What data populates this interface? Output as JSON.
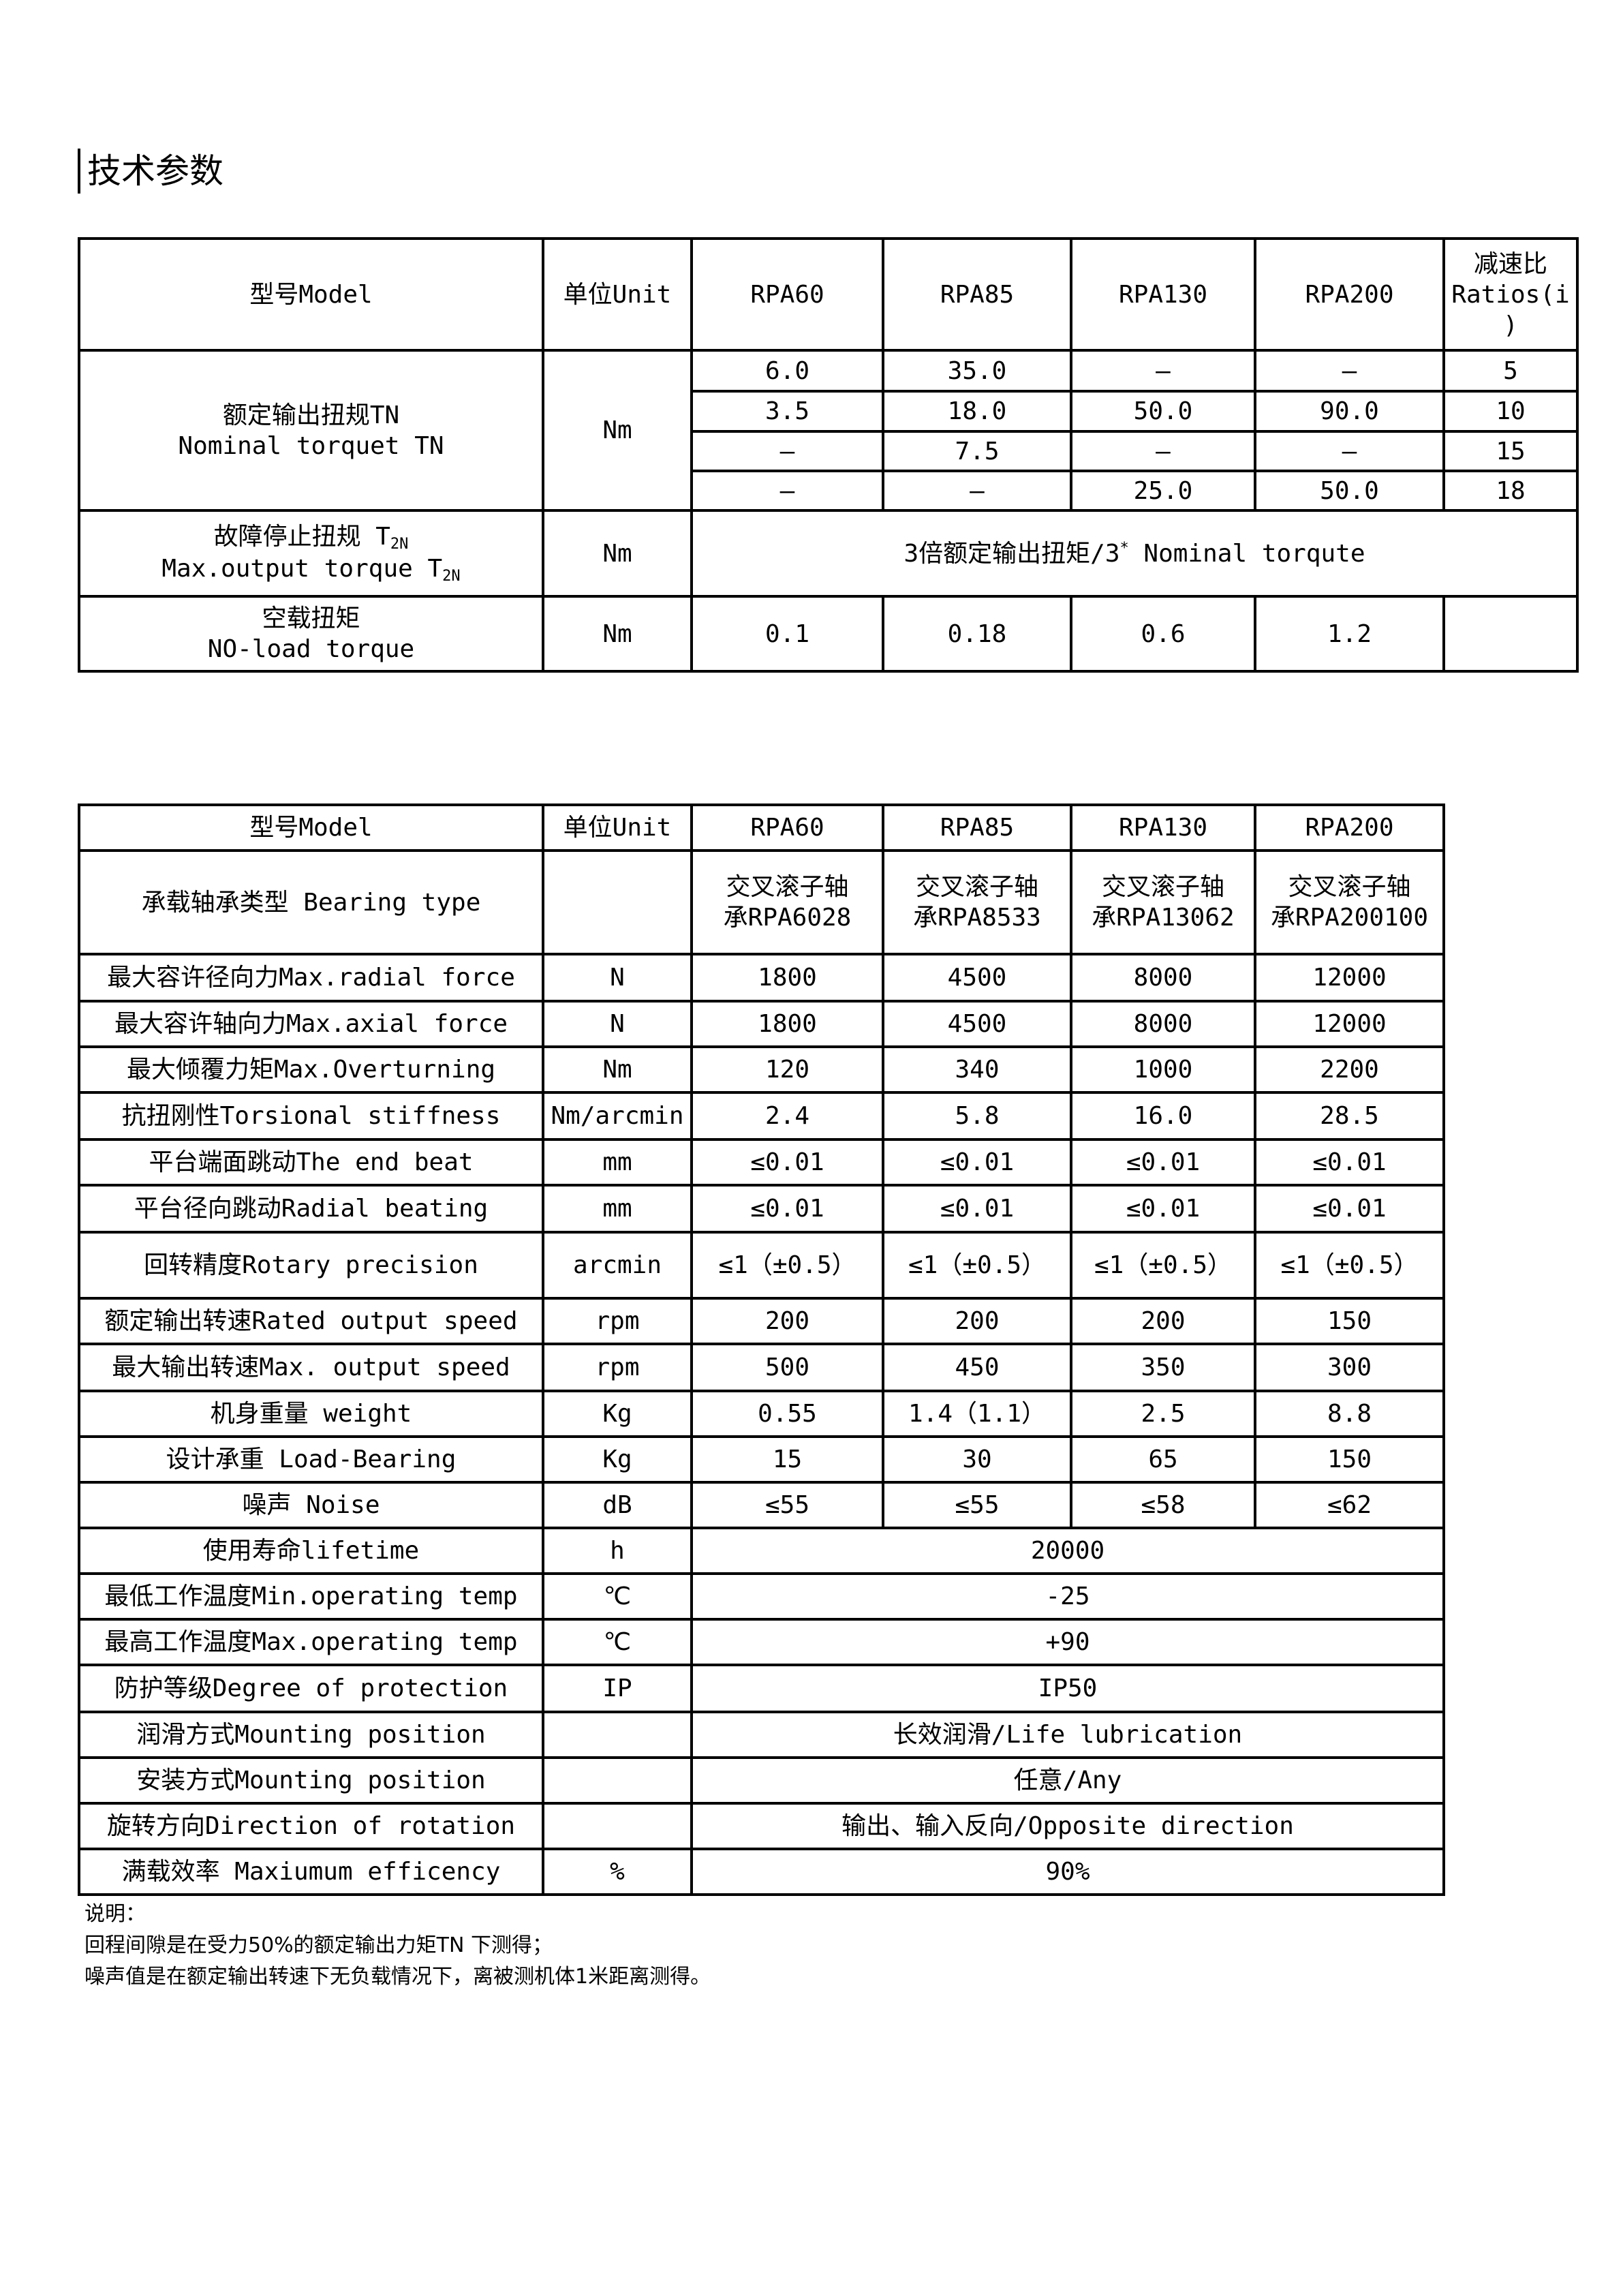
{
  "title": "技术参数",
  "table1": {
    "header": {
      "model": "型号Model",
      "unit": "单位Unit",
      "models": [
        "RPA60",
        "RPA85",
        "RPA130",
        "RPA200"
      ],
      "ratio_cn": "减速比",
      "ratio_en": "Ratios(i",
      "ratio_en2": ")"
    },
    "rated_torque": {
      "label_cn": "额定输出扭规TN",
      "label_en": "Nominal torquet TN",
      "unit": "Nm",
      "rows": [
        {
          "values": [
            "6.0",
            "35.0",
            "—",
            "—"
          ],
          "ratio": "5"
        },
        {
          "values": [
            "3.5",
            "18.0",
            "50.0",
            "90.0"
          ],
          "ratio": "10"
        },
        {
          "values": [
            "—",
            "7.5",
            "—",
            "—"
          ],
          "ratio": "15"
        },
        {
          "values": [
            "—",
            "—",
            "25.0",
            "50.0"
          ],
          "ratio": "18"
        }
      ]
    },
    "max_torque": {
      "label_cn": "故障停止扭规 T",
      "label_en": "Max.output torque T",
      "sub": "2N",
      "unit": "Nm",
      "value": "3倍额定输出扭矩/3",
      "value_sup": "*",
      "value_tail": " Nominal torqute"
    },
    "no_load": {
      "label_cn": "空载扭矩",
      "label_en": "NO-load torque",
      "unit": "Nm",
      "values": [
        "0.1",
        "0.18",
        "0.6",
        "1.2"
      ],
      "ratio": ""
    }
  },
  "table2": {
    "header": {
      "model": "型号Model",
      "unit": "单位Unit",
      "models": [
        "RPA60",
        "RPA85",
        "RPA130",
        "RPA200"
      ]
    },
    "bearing": {
      "label": "承载轴承类型 Bearing type",
      "unit": "",
      "values": [
        [
          "交叉滚子轴",
          "承RPA6028"
        ],
        [
          "交叉滚子轴",
          "承RPA8533"
        ],
        [
          "交叉滚子轴",
          "承RPA13062"
        ],
        [
          "交叉滚子轴",
          "承RPA200100"
        ]
      ]
    },
    "rows": [
      {
        "label": "最大容许径向力Max.radial force",
        "unit": "N",
        "values": [
          "1800",
          "4500",
          "8000",
          "12000"
        ]
      },
      {
        "label": "最大容许轴向力Max.axial force",
        "unit": "N",
        "values": [
          "1800",
          "4500",
          "8000",
          "12000"
        ]
      },
      {
        "label": "最大倾覆力矩Max.Overturning",
        "unit": "Nm",
        "values": [
          "120",
          "340",
          "1000",
          "2200"
        ]
      },
      {
        "label": "抗扭刚性Torsional stiffness",
        "unit": "Nm/arcmin",
        "values": [
          "2.4",
          "5.8",
          "16.0",
          "28.5"
        ]
      },
      {
        "label": "平台端面跳动The end beat",
        "unit": "mm",
        "values": [
          "≤0.01",
          "≤0.01",
          "≤0.01",
          "≤0.01"
        ]
      },
      {
        "label": "平台径向跳动Radial beating",
        "unit": "mm",
        "values": [
          "≤0.01",
          "≤0.01",
          "≤0.01",
          "≤0.01"
        ]
      },
      {
        "label": "回转精度Rotary precision",
        "unit": "arcmin",
        "values": [
          "≤1（±0.5）",
          "≤1（±0.5）",
          "≤1（±0.5）",
          "≤1（±0.5）"
        ]
      },
      {
        "label": "额定输出转速Rated output speed",
        "unit": "rpm",
        "values": [
          "200",
          "200",
          "200",
          "150"
        ]
      },
      {
        "label": "最大输出转速Max. output speed",
        "unit": "rpm",
        "values": [
          "500",
          "450",
          "350",
          "300"
        ]
      },
      {
        "label": "机身重量 weight",
        "unit": "Kg",
        "values": [
          "0.55",
          "1.4（1.1）",
          "2.5",
          "8.8"
        ]
      },
      {
        "label": "设计承重 Load-Bearing",
        "unit": "Kg",
        "values": [
          "15",
          "30",
          "65",
          "150"
        ]
      },
      {
        "label": "噪声 Noise",
        "unit": "dB",
        "values": [
          "≤55",
          "≤55",
          "≤58",
          "≤62"
        ]
      },
      {
        "label": "使用寿命lifetime",
        "unit": "h",
        "value": "20000"
      },
      {
        "label": "最低工作温度Min.operating temp",
        "unit": "℃",
        "value": "-25"
      },
      {
        "label": "最高工作温度Max.operating temp",
        "unit": "℃",
        "value": "+90"
      },
      {
        "label": "防护等级Degree of protection",
        "unit": "IP",
        "value": "IP50"
      },
      {
        "label": "润滑方式Mounting position",
        "unit": "",
        "value": "长效润滑/Life lubrication"
      },
      {
        "label": "安装方式Mounting position",
        "unit": "",
        "value": "任意/Any"
      },
      {
        "label": "旋转方向Direction of rotation",
        "unit": "",
        "value": "输出、输入反向/Opposite direction"
      },
      {
        "label": "满载效率 Maxiumum efficency",
        "unit": "%",
        "value": "90%"
      }
    ]
  },
  "notes": [
    "说明：",
    "回程间隙是在受力50%的额定输出力矩TN 下测得；",
    "噪声值是在额定输出转速下无负载情况下，离被测机体1米距离测得。"
  ]
}
